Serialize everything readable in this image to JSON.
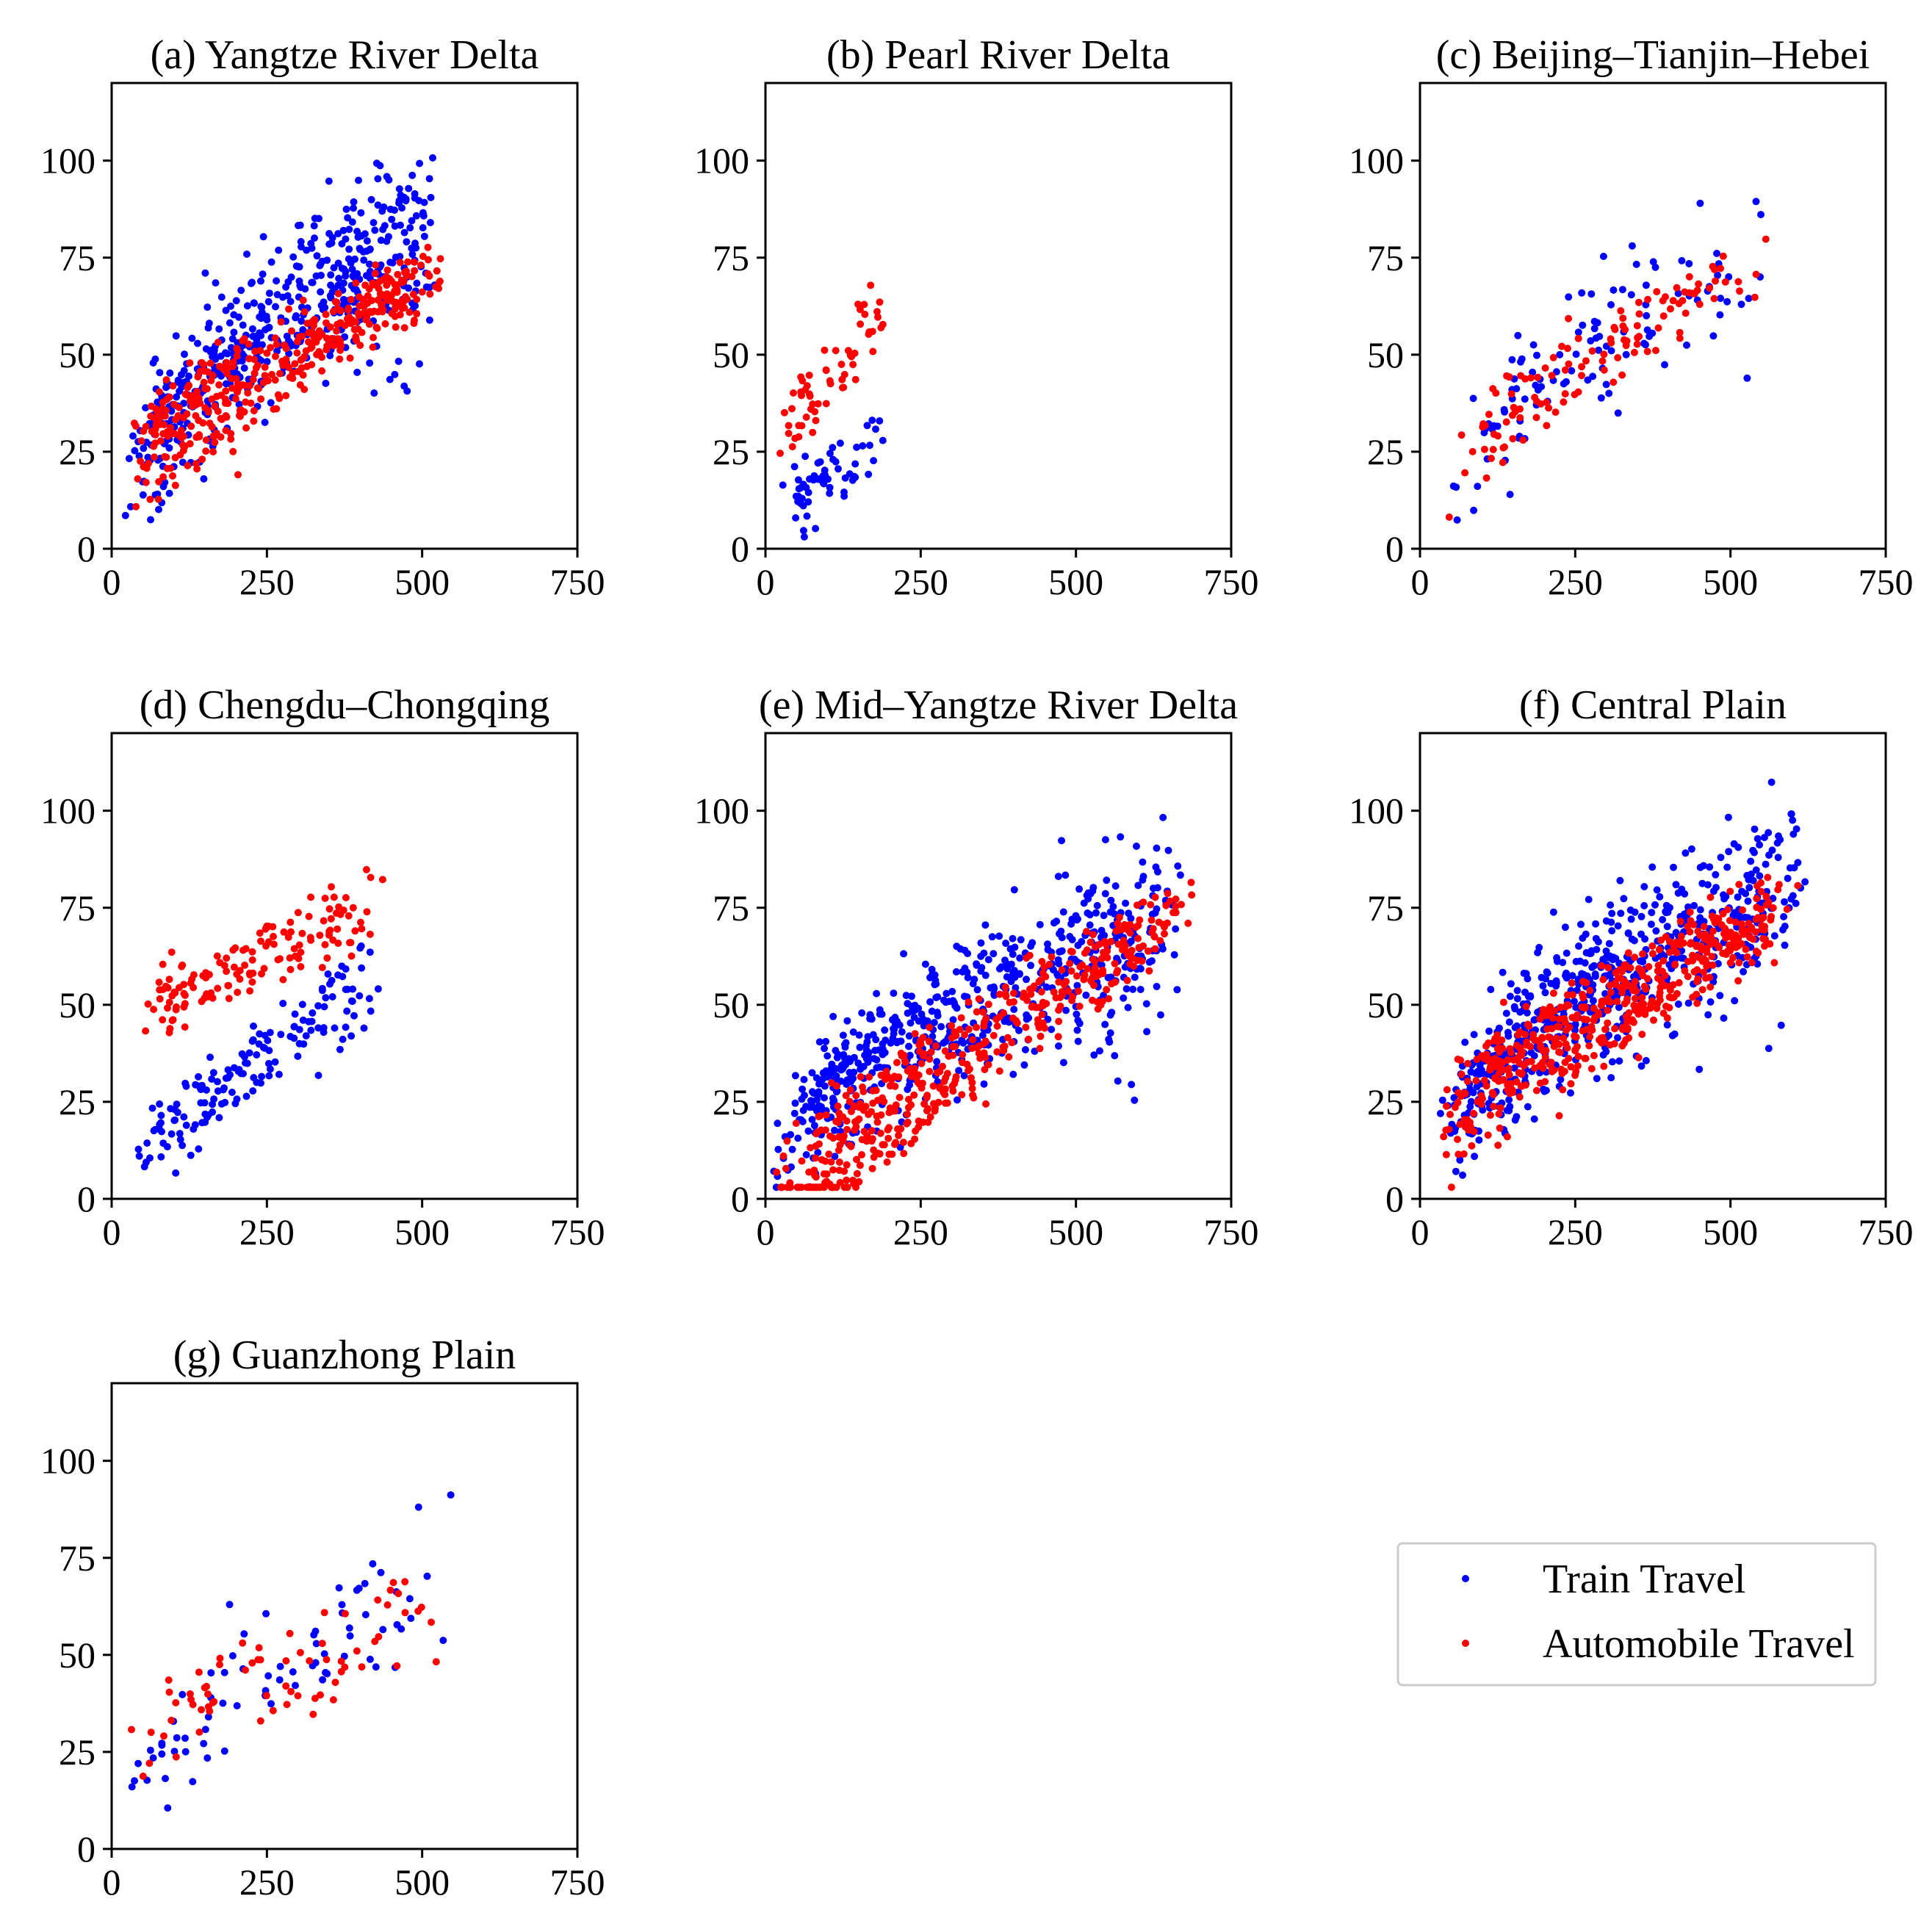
{
  "legend": {
    "entries": [
      {
        "name": "Train Travel",
        "color": "#0000ff"
      },
      {
        "name": "Automobile Travel",
        "color": "#ff0000"
      }
    ]
  },
  "chart_data": [
    {
      "type": "scatter",
      "title": "(a) Yangtze River Delta",
      "xlim": [
        0,
        750
      ],
      "ylim": [
        0,
        120
      ],
      "xticks": [
        0,
        250,
        500,
        750
      ],
      "yticks": [
        0,
        25,
        50,
        75,
        100
      ],
      "series": [
        {
          "name": "Train Travel",
          "color": "#0000ff",
          "n": 520,
          "spec": [
            [
              20,
              540
            ],
            [
              8,
              14
            ],
            [
              102,
              57
            ],
            [
              0.55,
              14
            ],
            [
              0.08
            ]
          ]
        },
        {
          "name": "Automobile Travel",
          "color": "#ff0000",
          "n": 420,
          "spec": [
            [
              20,
              540
            ],
            [
              33,
              42
            ],
            [
              76,
              13
            ],
            [
              0.85,
              6
            ],
            [
              0.02
            ]
          ]
        }
      ]
    },
    {
      "type": "scatter",
      "title": "(b) Pearl River Delta",
      "xlim": [
        0,
        750
      ],
      "ylim": [
        0,
        120
      ],
      "xticks": [
        0,
        250,
        500,
        750
      ],
      "yticks": [
        0,
        25,
        50,
        75,
        100
      ],
      "series": [
        {
          "name": "Train Travel",
          "color": "#0000ff",
          "n": 60,
          "spec": [
            [
              15,
              200
            ],
            [
              10,
              12
            ],
            [
              35,
              15
            ],
            [
              0.9,
              6
            ],
            [
              0.06
            ]
          ]
        },
        {
          "name": "Automobile Travel",
          "color": "#ff0000",
          "n": 60,
          "spec": [
            [
              15,
              200
            ],
            [
              27,
              20
            ],
            [
              72,
              25
            ],
            [
              0.8,
              5
            ],
            [
              0
            ]
          ]
        }
      ]
    },
    {
      "type": "scatter",
      "title": "(c) Beijing–Tianjin–Hebei",
      "xlim": [
        0,
        750
      ],
      "ylim": [
        0,
        120
      ],
      "xticks": [
        0,
        250,
        500,
        750
      ],
      "yticks": [
        0,
        25,
        50,
        75,
        100
      ],
      "series": [
        {
          "name": "Train Travel",
          "color": "#0000ff",
          "n": 110,
          "spec": [
            [
              35,
              570
            ],
            [
              12,
              22
            ],
            [
              90,
              45
            ],
            [
              0.55,
              12
            ],
            [
              0.05
            ]
          ]
        },
        {
          "name": "Automobile Travel",
          "color": "#ff0000",
          "n": 120,
          "spec": [
            [
              35,
              570
            ],
            [
              34,
              42
            ],
            [
              80,
              12
            ],
            [
              0.85,
              7
            ],
            [
              0
            ]
          ]
        }
      ]
    },
    {
      "type": "scatter",
      "title": "(d) Chengdu–Chongqing",
      "xlim": [
        0,
        750
      ],
      "ylim": [
        0,
        120
      ],
      "xticks": [
        0,
        250,
        500,
        750
      ],
      "yticks": [
        0,
        25,
        50,
        75,
        100
      ],
      "series": [
        {
          "name": "Train Travel",
          "color": "#0000ff",
          "n": 160,
          "spec": [
            [
              40,
              445
            ],
            [
              14,
              10
            ],
            [
              68,
              30
            ],
            [
              0.9,
              8
            ],
            [
              0
            ]
          ]
        },
        {
          "name": "Automobile Travel",
          "color": "#ff0000",
          "n": 140,
          "spec": [
            [
              40,
              445
            ],
            [
              52,
              20
            ],
            [
              82,
              20
            ],
            [
              0.8,
              6
            ],
            [
              0
            ]
          ]
        }
      ]
    },
    {
      "type": "scatter",
      "title": "(e) Mid–Yangtze River Delta",
      "xlim": [
        0,
        750
      ],
      "ylim": [
        0,
        120
      ],
      "xticks": [
        0,
        250,
        500,
        750
      ],
      "yticks": [
        0,
        25,
        50,
        75,
        100
      ],
      "series": [
        {
          "name": "Train Travel",
          "color": "#0000ff",
          "n": 620,
          "spec": [
            [
              5,
              690
            ],
            [
              6,
              16
            ],
            [
              92,
              60
            ],
            [
              0.6,
              14
            ],
            [
              0.05
            ]
          ]
        },
        {
          "name": "Automobile Travel",
          "color": "#ff0000",
          "n": 480,
          "spec": [
            [
              5,
              690
            ],
            [
              14,
              55
            ],
            [
              80,
              12
            ],
            [
              0.85,
              6
            ],
            [
              0.01
            ]
          ]
        }
      ]
    },
    {
      "type": "scatter",
      "title": "(f) Central Plain",
      "xlim": [
        0,
        750
      ],
      "ylim": [
        0,
        120
      ],
      "xticks": [
        0,
        250,
        500,
        750
      ],
      "yticks": [
        0,
        25,
        50,
        75,
        100
      ],
      "series": [
        {
          "name": "Train Travel",
          "color": "#0000ff",
          "n": 640,
          "spec": [
            [
              30,
              630
            ],
            [
              12,
              14
            ],
            [
              100,
              55
            ],
            [
              0.6,
              14
            ],
            [
              0.06
            ]
          ]
        },
        {
          "name": "Automobile Travel",
          "color": "#ff0000",
          "n": 520,
          "spec": [
            [
              30,
              630
            ],
            [
              30,
              40
            ],
            [
              84,
              14
            ],
            [
              0.85,
              7
            ],
            [
              0.02
            ]
          ]
        }
      ]
    },
    {
      "type": "scatter",
      "title": "(g) Guanzhong Plain",
      "xlim": [
        0,
        750
      ],
      "ylim": [
        0,
        120
      ],
      "xticks": [
        0,
        250,
        500,
        750
      ],
      "yticks": [
        0,
        25,
        50,
        75,
        100
      ],
      "series": [
        {
          "name": "Train Travel",
          "color": "#0000ff",
          "n": 75,
          "spec": [
            [
              20,
              555
            ],
            [
              12,
              10
            ],
            [
              86,
              50
            ],
            [
              0.7,
              14
            ],
            [
              0
            ]
          ]
        },
        {
          "name": "Automobile Travel",
          "color": "#ff0000",
          "n": 70,
          "spec": [
            [
              20,
              555
            ],
            [
              36,
              42
            ],
            [
              72,
              28
            ],
            [
              0.8,
              8
            ],
            [
              0
            ]
          ]
        }
      ]
    }
  ]
}
